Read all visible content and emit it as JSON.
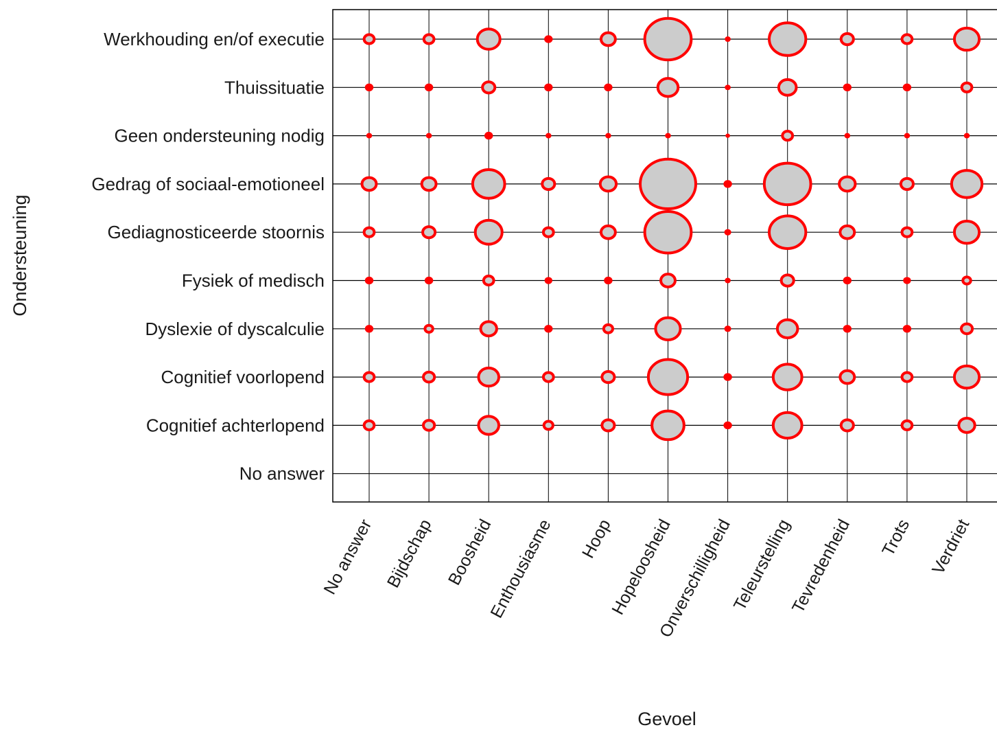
{
  "chart_data": {
    "type": "bubble-grid",
    "xlabel": "Gevoel",
    "ylabel": "Ondersteuning",
    "x_categories": [
      "No answer",
      "Bijdschap",
      "Boosheid",
      "Enthousiasme",
      "Hoop",
      "Hopeloosheid",
      "Onverschilligheid",
      "Teleurstelling",
      "Tevredenheid",
      "Trots",
      "Verdriet"
    ],
    "y_categories": [
      "Werkhouding en/of executie",
      "Thuissituatie",
      "Geen ondersteuning nodig",
      "Gedrag of sociaal-emotioneel",
      "Gediagnosticeerde stoornis",
      "Fysiek of medisch",
      "Dyslexie of dyscalculie",
      "Cognitief voorlopend",
      "Cognitief achterlopend",
      "No answer"
    ],
    "values": [
      [
        1,
        1,
        5,
        0.5,
        2,
        21,
        0.2,
        13,
        1.5,
        1,
        6
      ],
      [
        0.5,
        0.5,
        1.5,
        0.5,
        0.5,
        4,
        0.2,
        3,
        0.5,
        0.5,
        1
      ],
      [
        0.2,
        0.2,
        0.5,
        0.2,
        0.2,
        0.2,
        0.1,
        1,
        0.2,
        0.2,
        0.2
      ],
      [
        2,
        2,
        10,
        1.5,
        2.5,
        30,
        0.5,
        21,
        2.5,
        1.5,
        9
      ],
      [
        1,
        1.5,
        7,
        1,
        2,
        21,
        0.3,
        13,
        2,
        1,
        6
      ],
      [
        0.5,
        0.5,
        1,
        0.4,
        0.5,
        2,
        0.2,
        1.5,
        0.5,
        0.4,
        0.6
      ],
      [
        0.5,
        0.6,
        2.5,
        0.5,
        0.8,
        6,
        0.3,
        4,
        0.5,
        0.5,
        1.2
      ],
      [
        1,
        1.2,
        4,
        1,
        1.5,
        15,
        0.5,
        8,
        2,
        1,
        6
      ],
      [
        1,
        1.2,
        4,
        0.8,
        1.5,
        10,
        0.5,
        8,
        1.5,
        1,
        2.5
      ],
      [
        0,
        0,
        0,
        0,
        0,
        0,
        0,
        0,
        0,
        0,
        0
      ]
    ],
    "marker_fill": "#cccccc",
    "marker_stroke": "#ff0000",
    "grid": true
  }
}
